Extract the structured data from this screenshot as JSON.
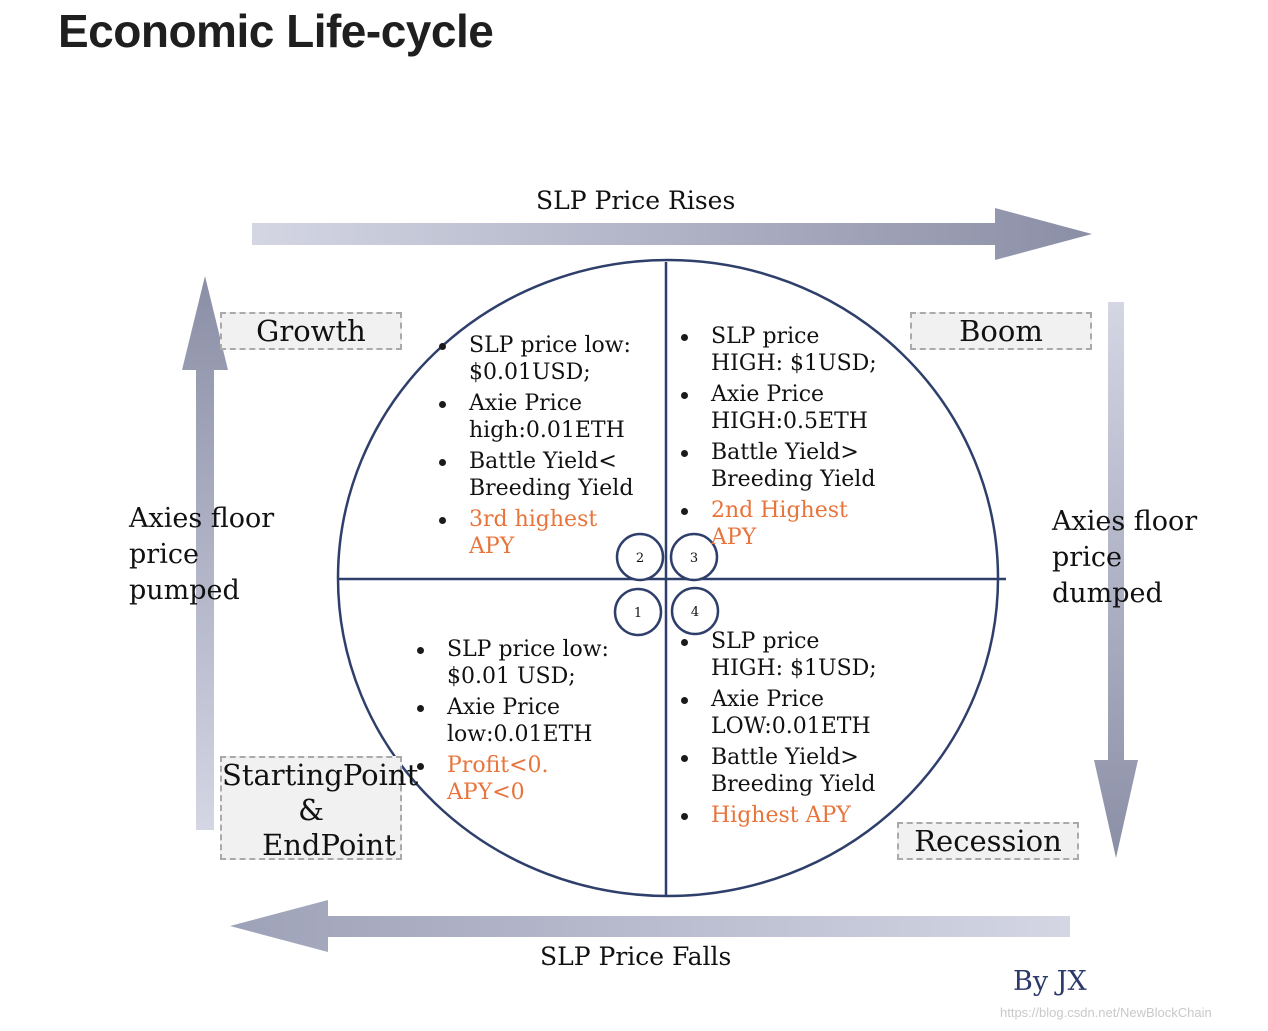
{
  "title": "Economic Life-cycle",
  "arrows": {
    "top": "SLP Price Rises",
    "bottom": "SLP Price Falls",
    "left": "Axies floor price pumped",
    "right": "Axies floor price dumped"
  },
  "phases": {
    "growth": "Growth",
    "boom": "Boom",
    "recession": "Recession",
    "start_line1": "StartingPoint",
    "start_line2": "&",
    "start_line3": "EndPoint"
  },
  "quadrants": [
    {
      "number": "2",
      "items": [
        "SLP price low: $0.01USD;",
        "Axie Price high:0.01ETH",
        "Battle Yield< Breeding Yield",
        "3rd highest APY"
      ]
    },
    {
      "number": "3",
      "items": [
        "SLP price HIGH: $1USD;",
        "Axie Price HIGH:0.5ETH",
        "Battle Yield> Breeding Yield",
        "2nd Highest APY"
      ]
    },
    {
      "number": "1",
      "items": [
        "SLP price low: $0.01 USD;",
        "Axie Price low:0.01ETH",
        "Profit<0. APY<0"
      ]
    },
    {
      "number": "4",
      "items": [
        "SLP price HIGH: $1USD;",
        "Axie Price LOW:0.01ETH",
        "Battle Yield> Breeding Yield",
        "Highest APY"
      ]
    }
  ],
  "byline": "By JX",
  "watermark": "https://blog.csdn.net/NewBlockChain",
  "colors": {
    "circle": "#2f3f6b",
    "arrow": "#c5c8da",
    "arrow_dark": "#8d91a8",
    "accent": "#e8743b"
  }
}
